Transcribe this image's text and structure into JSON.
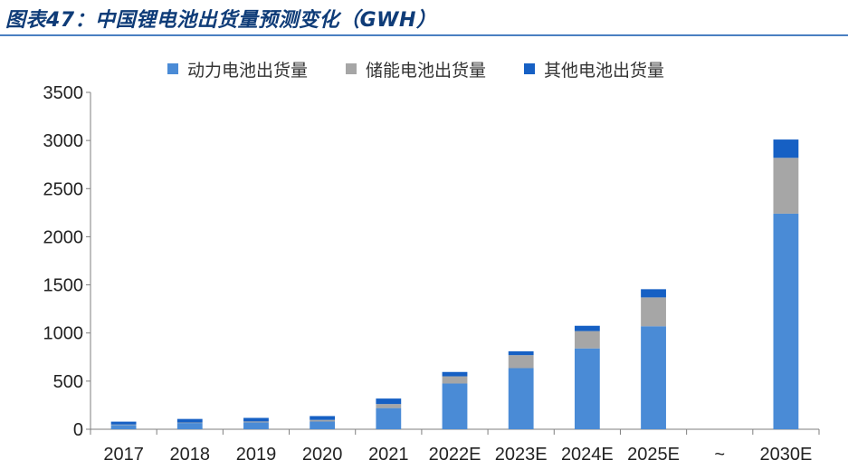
{
  "title": "图表47：中国锂电池出货量预测变化（GWH）",
  "colors": {
    "power": "#4a8bd6",
    "storage": "#a6a6a6",
    "other": "#1660c4",
    "title": "#0f3c78",
    "rule": "#4a7fc1"
  },
  "chart_data": {
    "type": "bar",
    "stacked": true,
    "categories": [
      "2017",
      "2018",
      "2019",
      "2020",
      "2021",
      "2022E",
      "2023E",
      "2024E",
      "2025E",
      "~",
      "2030E"
    ],
    "series": [
      {
        "name": "动力电池出货量",
        "values": [
          44,
          65,
          71,
          80,
          220,
          475,
          635,
          840,
          1070,
          null,
          2240
        ]
      },
      {
        "name": "储能电池出货量",
        "values": [
          5,
          5,
          10,
          17,
          42,
          75,
          135,
          180,
          300,
          null,
          580
        ]
      },
      {
        "name": "其他电池出货量",
        "values": [
          30,
          37,
          37,
          40,
          57,
          45,
          40,
          55,
          85,
          null,
          190
        ]
      }
    ],
    "ylim": [
      0,
      3500
    ],
    "yticks": [
      0,
      500,
      1000,
      1500,
      2000,
      2500,
      3000,
      3500
    ],
    "legend_position": "top",
    "grid": false
  }
}
